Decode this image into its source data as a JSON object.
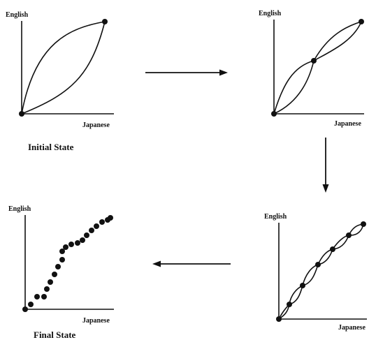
{
  "panels": [
    {
      "id": "p1",
      "y_label": "English",
      "x_label": "Japanese",
      "caption": "Initial State"
    },
    {
      "id": "p2",
      "y_label": "English",
      "x_label": "Japanese",
      "caption": ""
    },
    {
      "id": "p3",
      "y_label": "English",
      "x_label": "Japanese",
      "caption": ""
    },
    {
      "id": "p4",
      "y_label": "English",
      "x_label": "Japanese",
      "caption": "Final State"
    }
  ]
}
